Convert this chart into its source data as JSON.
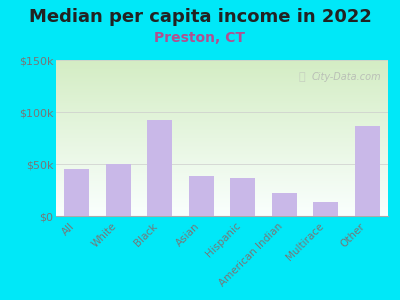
{
  "title": "Median per capita income in 2022",
  "subtitle": "Preston, CT",
  "categories": [
    "All",
    "White",
    "Black",
    "Asian",
    "Hispanic",
    "American Indian",
    "Multirace",
    "Other"
  ],
  "values": [
    45000,
    50000,
    92000,
    38000,
    37000,
    22000,
    13000,
    87000
  ],
  "bar_color": "#c9b8e8",
  "title_fontsize": 13,
  "subtitle_fontsize": 10,
  "subtitle_color": "#b05090",
  "tick_color": "#777777",
  "background_outer": "#00e8f8",
  "watermark": "City-Data.com",
  "ylim": [
    0,
    150000
  ],
  "yticks": [
    0,
    50000,
    100000,
    150000
  ],
  "ytick_labels": [
    "$0",
    "$50k",
    "$100k",
    "$150k"
  ]
}
